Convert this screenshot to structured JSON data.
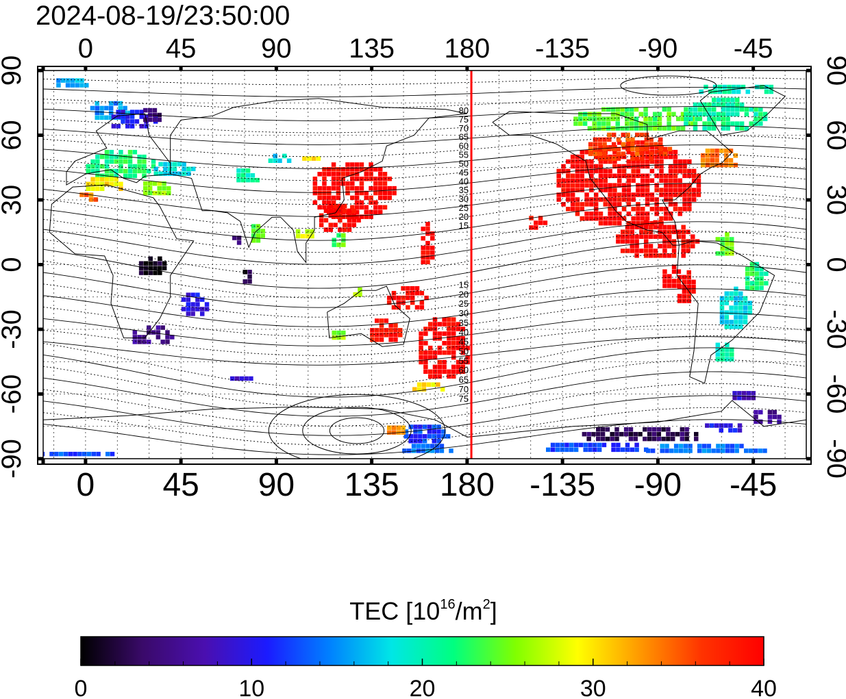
{
  "title": "2024-08-19/23:50:00",
  "x_axis": {
    "ticks": [
      {
        "lon": -20,
        "label": ""
      },
      {
        "lon": 0,
        "label": "0"
      },
      {
        "lon": 45,
        "label": "45"
      },
      {
        "lon": 90,
        "label": "90"
      },
      {
        "lon": 135,
        "label": "135"
      },
      {
        "lon": 180,
        "label": "180"
      },
      {
        "lon": 225,
        "label": "-135"
      },
      {
        "lon": 270,
        "label": "-90"
      },
      {
        "lon": 315,
        "label": "-45"
      }
    ],
    "range": [
      -20,
      340
    ]
  },
  "y_axis": {
    "ticks": [
      {
        "lat": 90,
        "label": "90"
      },
      {
        "lat": 60,
        "label": "60"
      },
      {
        "lat": 30,
        "label": "30"
      },
      {
        "lat": 0,
        "label": "0"
      },
      {
        "lat": -30,
        "label": "-30"
      },
      {
        "lat": -60,
        "label": "-60"
      },
      {
        "lat": -90,
        "label": "-90"
      }
    ],
    "range": [
      -90,
      90
    ]
  },
  "meridian_line": {
    "lon": 182,
    "color": "#ff0000"
  },
  "meridian_labels": {
    "north": [
      "80",
      "75",
      "70",
      "65",
      "60",
      "55",
      "50",
      "45",
      "40",
      "35",
      "30",
      "25",
      "20",
      "15"
    ],
    "south": [
      "15",
      "20",
      "25",
      "30",
      "35",
      "40",
      "45",
      "50",
      "55",
      "60",
      "65",
      "70",
      "75"
    ]
  },
  "colorbar": {
    "label": "TEC  [10¹⁶/m²]",
    "min": 0,
    "max": 40,
    "ticks": [
      "0",
      "10",
      "20",
      "30",
      "40"
    ],
    "stops": [
      "#000000",
      "#3a0a6a",
      "#4a0fb0",
      "#1b1bff",
      "#0080ff",
      "#00e6e6",
      "#00ff80",
      "#80ff00",
      "#ffff00",
      "#ff9900",
      "#ff3300",
      "#ff0000"
    ]
  },
  "tec_regions": [
    {
      "lon": 125,
      "lat": 35,
      "w": 40,
      "h": 28,
      "tec": 40
    },
    {
      "lon": 118,
      "lat": 22,
      "w": 20,
      "h": 14,
      "tec": 40
    },
    {
      "lon": 160,
      "lat": 10,
      "w": 8,
      "h": 20,
      "tec": 40
    },
    {
      "lon": 150,
      "lat": -15,
      "w": 20,
      "h": 12,
      "tec": 40
    },
    {
      "lon": 168,
      "lat": -38,
      "w": 26,
      "h": 30,
      "tec": 40
    },
    {
      "lon": 140,
      "lat": -30,
      "w": 16,
      "h": 12,
      "tec": 39
    },
    {
      "lon": 255,
      "lat": 38,
      "w": 70,
      "h": 40,
      "tec": 40
    },
    {
      "lon": 268,
      "lat": 12,
      "w": 40,
      "h": 18,
      "tec": 40
    },
    {
      "lon": 212,
      "lat": 20,
      "w": 10,
      "h": 8,
      "tec": 40
    },
    {
      "lon": 282,
      "lat": -10,
      "w": 10,
      "h": 16,
      "tec": 40
    },
    {
      "lon": 255,
      "lat": 55,
      "w": 40,
      "h": 14,
      "tec": 36
    },
    {
      "lon": 258,
      "lat": 68,
      "w": 60,
      "h": 12,
      "tec": 24
    },
    {
      "lon": 300,
      "lat": 70,
      "w": 40,
      "h": 16,
      "tec": 21
    },
    {
      "lon": 305,
      "lat": 82,
      "w": 40,
      "h": 6,
      "tec": 20
    },
    {
      "lon": 298,
      "lat": 50,
      "w": 20,
      "h": 10,
      "tec": 34
    },
    {
      "lon": 300,
      "lat": 10,
      "w": 10,
      "h": 12,
      "tec": 25
    },
    {
      "lon": 305,
      "lat": -20,
      "w": 16,
      "h": 20,
      "tec": 18
    },
    {
      "lon": 315,
      "lat": -5,
      "w": 12,
      "h": 14,
      "tec": 22
    },
    {
      "lon": 300,
      "lat": -40,
      "w": 10,
      "h": 10,
      "tec": 20
    },
    {
      "lon": 310,
      "lat": -60,
      "w": 14,
      "h": 6,
      "tec": 8
    },
    {
      "lon": 320,
      "lat": -70,
      "w": 14,
      "h": 8,
      "tec": 6
    },
    {
      "lon": 262,
      "lat": -78,
      "w": 60,
      "h": 8,
      "tec": 3
    },
    {
      "lon": 240,
      "lat": -84,
      "w": 50,
      "h": 6,
      "tec": 12
    },
    {
      "lon": 290,
      "lat": -85,
      "w": 60,
      "h": 5,
      "tec": 14
    },
    {
      "lon": 300,
      "lat": -75,
      "w": 20,
      "h": 6,
      "tec": 10
    },
    {
      "lon": 160,
      "lat": -78,
      "w": 24,
      "h": 10,
      "tec": 12
    },
    {
      "lon": 145,
      "lat": -76,
      "w": 10,
      "h": 6,
      "tec": 33
    },
    {
      "lon": 10,
      "lat": 72,
      "w": 20,
      "h": 10,
      "tec": 15
    },
    {
      "lon": 22,
      "lat": 68,
      "w": 24,
      "h": 10,
      "tec": 10
    },
    {
      "lon": 30,
      "lat": 70,
      "w": 10,
      "h": 8,
      "tec": 4
    },
    {
      "lon": 15,
      "lat": 47,
      "w": 34,
      "h": 14,
      "tec": 22
    },
    {
      "lon": 8,
      "lat": 38,
      "w": 20,
      "h": 8,
      "tec": 30
    },
    {
      "lon": 32,
      "lat": 36,
      "w": 14,
      "h": 8,
      "tec": 26
    },
    {
      "lon": -8,
      "lat": 85,
      "w": 16,
      "h": 6,
      "tec": 16
    },
    {
      "lon": 40,
      "lat": 45,
      "w": 20,
      "h": 8,
      "tec": 18
    },
    {
      "lon": 90,
      "lat": 50,
      "w": 12,
      "h": 6,
      "tec": 18
    },
    {
      "lon": 105,
      "lat": 50,
      "w": 10,
      "h": 4,
      "tec": 30
    },
    {
      "lon": 75,
      "lat": 42,
      "w": 12,
      "h": 8,
      "tec": 20
    },
    {
      "lon": 30,
      "lat": 0,
      "w": 14,
      "h": 10,
      "tec": 1
    },
    {
      "lon": 30,
      "lat": -32,
      "w": 20,
      "h": 10,
      "tec": 6
    },
    {
      "lon": 50,
      "lat": -18,
      "w": 14,
      "h": 12,
      "tec": 10
    },
    {
      "lon": 75,
      "lat": -5,
      "w": 6,
      "h": 8,
      "tec": 2
    },
    {
      "lon": 80,
      "lat": 15,
      "w": 8,
      "h": 10,
      "tec": 24
    },
    {
      "lon": 70,
      "lat": 12,
      "w": 6,
      "h": 6,
      "tec": 5
    },
    {
      "lon": 102,
      "lat": 15,
      "w": 10,
      "h": 6,
      "tec": 28
    },
    {
      "lon": 118,
      "lat": 12,
      "w": 8,
      "h": 8,
      "tec": 24
    },
    {
      "lon": 128,
      "lat": -12,
      "w": 8,
      "h": 6,
      "tec": 26
    },
    {
      "lon": 118,
      "lat": -32,
      "w": 8,
      "h": 6,
      "tec": 26
    },
    {
      "lon": 160,
      "lat": -56,
      "w": 16,
      "h": 6,
      "tec": 30
    },
    {
      "lon": 72,
      "lat": -52,
      "w": 12,
      "h": 4,
      "tec": 8
    },
    {
      "lon": 0,
      "lat": 32,
      "w": 10,
      "h": 6,
      "tec": 34
    },
    {
      "lon": 160,
      "lat": -85,
      "w": 30,
      "h": 5,
      "tec": 14
    },
    {
      "lon": -8,
      "lat": -87,
      "w": 40,
      "h": 4,
      "tec": 13
    },
    {
      "lon": 275,
      "lat": -5,
      "w": 10,
      "h": 12,
      "tec": 40
    }
  ]
}
